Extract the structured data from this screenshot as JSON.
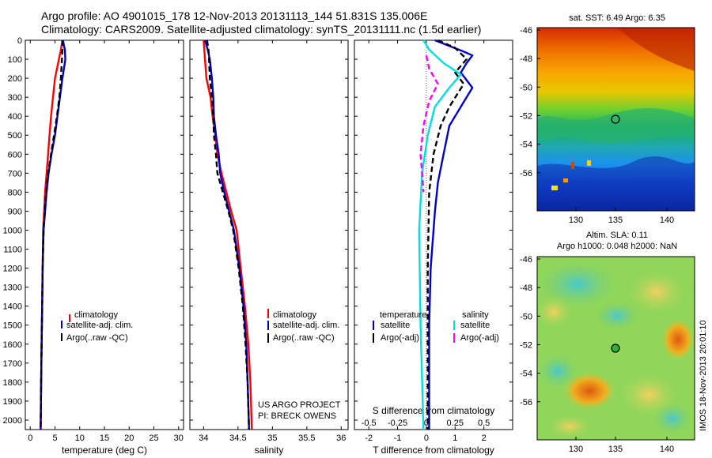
{
  "header": {
    "title_line1": "Argo profile: AO 4901015_178 12-Nov-2013 20131113_144 51.831S 135.006E",
    "title_line2": "Climatology: CARS2009. Satellite-adjusted climatology: synTS_20131111.nc (1.5d earlier)"
  },
  "colors": {
    "climatology": "#ff0000",
    "satellite": "#0000cc",
    "argo": "#000000",
    "salinity_satellite": "#00e0e0",
    "salinity_argo": "#ff00ff"
  },
  "depth_axis": {
    "ticks": [
      "0",
      "100",
      "200",
      "300",
      "400",
      "500",
      "600",
      "700",
      "800",
      "900",
      "1000",
      "1100",
      "1200",
      "1300",
      "1400",
      "1500",
      "1600",
      "1700",
      "1800",
      "1900",
      "2000"
    ],
    "ylim": [
      0,
      2050
    ]
  },
  "chart_data": [
    {
      "type": "line",
      "name": "temperature",
      "xlabel": "temperature (deg C)",
      "xlim": [
        -1,
        31
      ],
      "xticks": [
        "0",
        "5",
        "10",
        "15",
        "20",
        "25",
        "30"
      ],
      "xtick_values": [
        0,
        5,
        10,
        15,
        20,
        25,
        30
      ],
      "legend": [
        "climatology",
        "satellite-adj. clim.",
        "Argo(..raw -QC)"
      ],
      "series": [
        {
          "name": "climatology",
          "style": "solid",
          "color": "#ff0000",
          "points": [
            [
              6.5,
              0
            ],
            [
              6.2,
              50
            ],
            [
              5.8,
              100
            ],
            [
              5.4,
              150
            ],
            [
              5.0,
              200
            ],
            [
              4.6,
              300
            ],
            [
              4.2,
              400
            ],
            [
              3.9,
              500
            ],
            [
              3.6,
              600
            ],
            [
              3.3,
              700
            ],
            [
              3.0,
              800
            ],
            [
              2.8,
              900
            ],
            [
              2.6,
              1000
            ],
            [
              2.5,
              1200
            ],
            [
              2.4,
              1400
            ],
            [
              2.3,
              1600
            ],
            [
              2.2,
              1800
            ],
            [
              2.1,
              2050
            ]
          ]
        },
        {
          "name": "satellite-adj. clim.",
          "style": "solid",
          "color": "#0000cc",
          "points": [
            [
              6.6,
              0
            ],
            [
              7.0,
              50
            ],
            [
              7.1,
              100
            ],
            [
              6.8,
              150
            ],
            [
              6.5,
              200
            ],
            [
              6.0,
              300
            ],
            [
              5.5,
              400
            ],
            [
              5.0,
              500
            ],
            [
              4.3,
              600
            ],
            [
              3.7,
              700
            ],
            [
              3.3,
              800
            ],
            [
              3.0,
              900
            ],
            [
              2.7,
              1000
            ],
            [
              2.5,
              1200
            ],
            [
              2.4,
              1400
            ],
            [
              2.3,
              1600
            ],
            [
              2.2,
              1800
            ],
            [
              2.1,
              2050
            ]
          ]
        },
        {
          "name": "Argo(..raw -QC)",
          "style": "dashed",
          "color": "#000000",
          "points": [
            [
              6.5,
              0
            ],
            [
              6.5,
              50
            ],
            [
              6.4,
              100
            ],
            [
              6.3,
              150
            ],
            [
              6.2,
              200
            ],
            [
              5.9,
              300
            ],
            [
              5.4,
              400
            ],
            [
              4.8,
              500
            ],
            [
              4.2,
              600
            ],
            [
              3.6,
              700
            ],
            [
              3.2,
              800
            ],
            [
              2.9,
              900
            ],
            [
              2.7,
              1000
            ],
            [
              2.5,
              1200
            ],
            [
              2.4,
              1400
            ],
            [
              2.3,
              1600
            ],
            [
              2.2,
              1800
            ],
            [
              2.1,
              2050
            ]
          ]
        }
      ]
    },
    {
      "type": "line",
      "name": "salinity",
      "xlabel": "salinity",
      "xlim": [
        33.8,
        36.1
      ],
      "xticks": [
        "34",
        "34.5",
        "35",
        "35.5",
        "36"
      ],
      "xtick_values": [
        34,
        34.5,
        35,
        35.5,
        36
      ],
      "legend": [
        "climatology",
        "satellite-adj. clim.",
        "Argo(..raw -QC)"
      ],
      "series": [
        {
          "name": "climatology",
          "style": "solid",
          "color": "#ff0000",
          "points": [
            [
              34.0,
              0
            ],
            [
              34.02,
              100
            ],
            [
              34.04,
              200
            ],
            [
              34.1,
              300
            ],
            [
              34.13,
              400
            ],
            [
              34.17,
              500
            ],
            [
              34.2,
              600
            ],
            [
              34.26,
              700
            ],
            [
              34.33,
              800
            ],
            [
              34.4,
              900
            ],
            [
              34.48,
              1000
            ],
            [
              34.54,
              1200
            ],
            [
              34.6,
              1400
            ],
            [
              34.65,
              1600
            ],
            [
              34.68,
              1800
            ],
            [
              34.7,
              2050
            ]
          ]
        },
        {
          "name": "satellite-adj. clim.",
          "style": "solid",
          "color": "#0000cc",
          "points": [
            [
              34.02,
              0
            ],
            [
              34.06,
              50
            ],
            [
              34.09,
              100
            ],
            [
              34.12,
              200
            ],
            [
              34.14,
              300
            ],
            [
              34.15,
              400
            ],
            [
              34.18,
              500
            ],
            [
              34.22,
              600
            ],
            [
              34.24,
              700
            ],
            [
              34.3,
              800
            ],
            [
              34.37,
              900
            ],
            [
              34.44,
              1000
            ],
            [
              34.52,
              1200
            ],
            [
              34.58,
              1400
            ],
            [
              34.62,
              1600
            ],
            [
              34.64,
              1800
            ],
            [
              34.66,
              2050
            ]
          ]
        },
        {
          "name": "Argo(..raw -QC)",
          "style": "dashed",
          "color": "#000000",
          "points": [
            [
              34.05,
              0
            ],
            [
              34.07,
              50
            ],
            [
              34.08,
              100
            ],
            [
              34.09,
              200
            ],
            [
              34.12,
              300
            ],
            [
              34.14,
              400
            ],
            [
              34.15,
              500
            ],
            [
              34.18,
              600
            ],
            [
              34.2,
              700
            ],
            [
              34.28,
              800
            ],
            [
              34.36,
              900
            ],
            [
              34.43,
              1000
            ],
            [
              34.51,
              1200
            ],
            [
              34.57,
              1400
            ],
            [
              34.61,
              1600
            ],
            [
              34.64,
              1800
            ],
            [
              34.66,
              2050
            ]
          ]
        }
      ],
      "annotation": [
        "US ARGO PROJECT",
        "PI: BRECK OWENS"
      ]
    },
    {
      "type": "line",
      "name": "difference",
      "xlabel": "T difference from climatology",
      "top_xlabel": "S difference from climatology",
      "xlim": [
        -2.5,
        3.0
      ],
      "xticks": [
        "-2",
        "-1",
        "0",
        "1",
        "2"
      ],
      "xtick_values": [
        -2,
        -1,
        0,
        1,
        2
      ],
      "top_ticks": [
        "-0.5",
        "-0.25",
        "0",
        "0.25",
        "0.5"
      ],
      "top_tick_values": [
        -2,
        -1,
        0,
        1,
        2
      ],
      "legend": {
        "temperature_title": "temperature",
        "salinity_title": "salinity",
        "temperature_entries": [
          "satellite",
          "Argo(-adj)"
        ],
        "salinity_entries": [
          "satellite",
          "Argo(-adj)"
        ]
      },
      "series": [
        {
          "name": "temperature satellite",
          "style": "solid",
          "color": "#0000cc",
          "points": [
            [
              0.3,
              0
            ],
            [
              0.8,
              30
            ],
            [
              1.3,
              60
            ],
            [
              1.6,
              80
            ],
            [
              1.4,
              120
            ],
            [
              1.2,
              170
            ],
            [
              1.6,
              250
            ],
            [
              1.2,
              350
            ],
            [
              0.8,
              450
            ],
            [
              0.6,
              600
            ],
            [
              0.4,
              750
            ],
            [
              0.3,
              900
            ],
            [
              0.15,
              1200
            ],
            [
              0.1,
              1500
            ],
            [
              0.1,
              2050
            ]
          ]
        },
        {
          "name": "temperature Argo(-adj)",
          "style": "dashed",
          "color": "#000000",
          "points": [
            [
              0.4,
              0
            ],
            [
              1.0,
              40
            ],
            [
              1.4,
              100
            ],
            [
              1.0,
              170
            ],
            [
              1.3,
              230
            ],
            [
              0.8,
              350
            ],
            [
              0.5,
              450
            ],
            [
              0.25,
              600
            ],
            [
              0.1,
              800
            ],
            [
              0.05,
              1200
            ],
            [
              0.05,
              2050
            ]
          ]
        },
        {
          "name": "salinity satellite",
          "style": "solid",
          "color": "#00e0e0",
          "points": [
            [
              -0.1,
              0
            ],
            [
              0.1,
              50
            ],
            [
              0.6,
              120
            ],
            [
              1.2,
              180
            ],
            [
              0.8,
              250
            ],
            [
              0.3,
              350
            ],
            [
              0.05,
              500
            ],
            [
              -0.15,
              700
            ],
            [
              -0.25,
              1000
            ],
            [
              -0.2,
              1500
            ],
            [
              -0.1,
              2050
            ]
          ]
        },
        {
          "name": "salinity Argo(-adj)",
          "style": "dashed",
          "color": "#ff00ff",
          "points": [
            [
              0,
              80
            ],
            [
              0.1,
              150
            ],
            [
              0.4,
              230
            ],
            [
              0.1,
              320
            ],
            [
              -0.1,
              450
            ],
            [
              -0.2,
              600
            ],
            [
              -0.15,
              700
            ],
            [
              -0.1,
              800
            ]
          ]
        }
      ]
    }
  ],
  "maps": {
    "sst": {
      "title": "sat. SST: 6.49 Argo: 6.35",
      "yticks": [
        "-46",
        "-48",
        "-50",
        "-52",
        "-54",
        "-56"
      ],
      "xticks": [
        "130",
        "135",
        "140"
      ]
    },
    "sla": {
      "title_line1": "Altim. SLA: 0.11",
      "title_line2": "Argo h1000: 0.048 h2000: NaN",
      "yticks": [
        "-46",
        "-48",
        "-50",
        "-52",
        "-54",
        "-56"
      ],
      "xticks": [
        "130",
        "135",
        "140"
      ]
    }
  },
  "footer": {
    "stamp": "IMOS 18-Nov-2013 20:01:10"
  }
}
